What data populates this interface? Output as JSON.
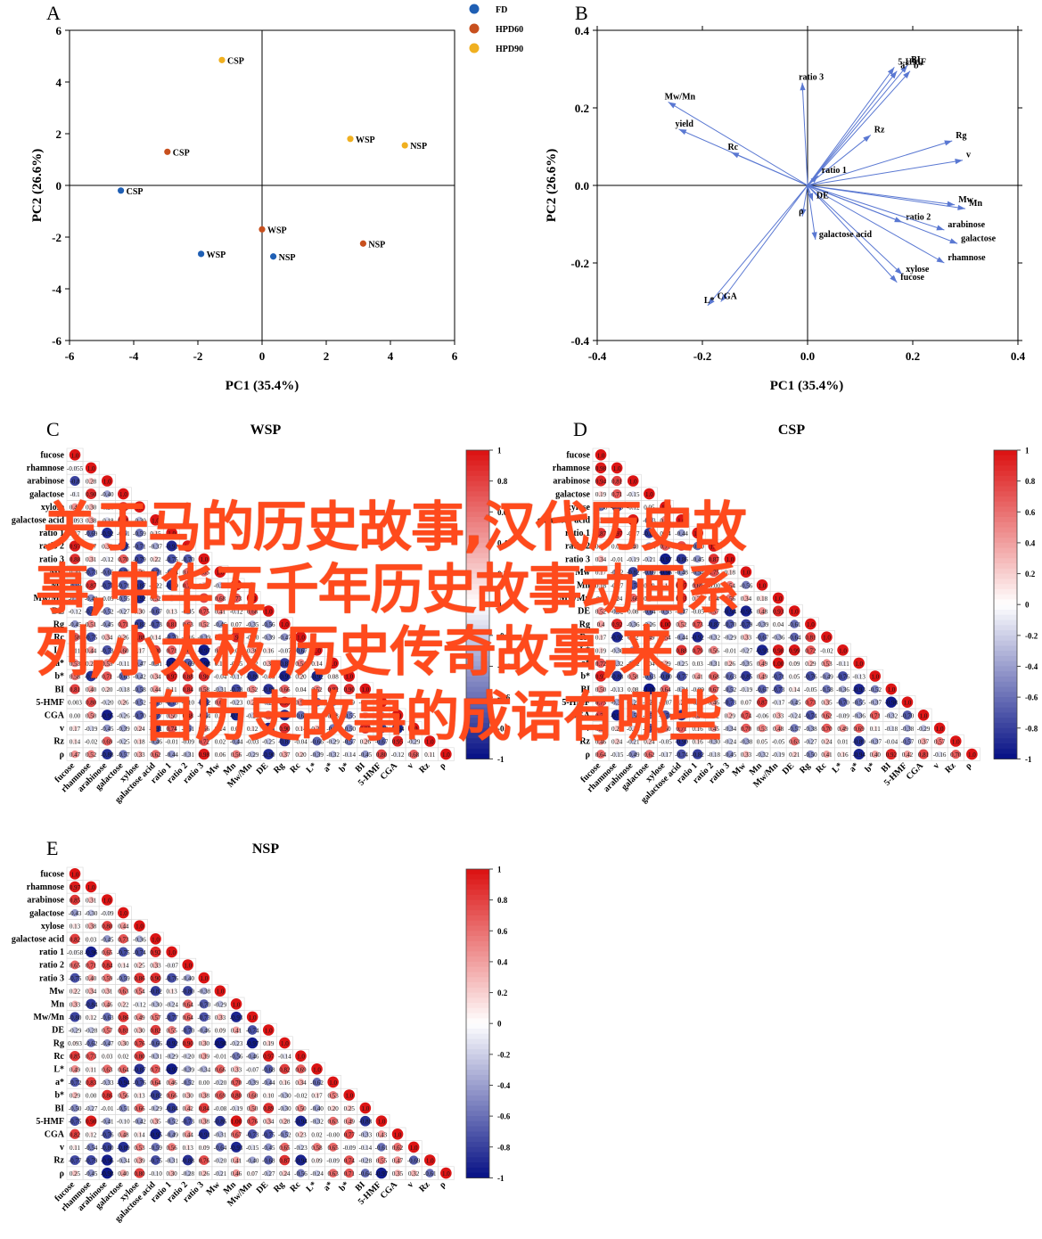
{
  "panels": {
    "A": {
      "letter": "A",
      "chart_data": {
        "type": "scatter",
        "xlabel": "PC1 (35.4%)",
        "ylabel": "PC2 (26.6%)",
        "xlim": [
          -6,
          6
        ],
        "ylim": [
          -6,
          6
        ],
        "xticks": [
          -6,
          -4,
          -2,
          0,
          2,
          4,
          6
        ],
        "yticks": [
          -6,
          -4,
          -2,
          0,
          2,
          4,
          6
        ],
        "legend_position": "top-right",
        "series": [
          {
            "name": "FD",
            "color": "#1f5fb4",
            "points": [
              {
                "x": -4.4,
                "y": -0.2,
                "label": "CSP"
              },
              {
                "x": -1.9,
                "y": -2.65,
                "label": "WSP"
              },
              {
                "x": 0.35,
                "y": -2.75,
                "label": "NSP"
              }
            ]
          },
          {
            "name": "HPD60",
            "color": "#c8501e",
            "points": [
              {
                "x": -2.95,
                "y": 1.3,
                "label": "CSP"
              },
              {
                "x": 0.0,
                "y": -1.7,
                "label": "WSP"
              },
              {
                "x": 3.15,
                "y": -2.25,
                "label": "NSP"
              }
            ]
          },
          {
            "name": "HPD90",
            "color": "#f0b020",
            "points": [
              {
                "x": -1.25,
                "y": 4.85,
                "label": "CSP"
              },
              {
                "x": 2.75,
                "y": 1.8,
                "label": "WSP"
              },
              {
                "x": 4.45,
                "y": 1.55,
                "label": "NSP"
              }
            ]
          }
        ]
      }
    },
    "B": {
      "letter": "B",
      "chart_data": {
        "type": "biplot",
        "xlabel": "PC1 (35.4%)",
        "ylabel": "PC2 (26.6%)",
        "xlim": [
          -0.4,
          0.4
        ],
        "ylim": [
          -0.4,
          0.4
        ],
        "xticks": [
          "-0.4",
          "-0.2",
          "0.0",
          "0.2",
          "0.4"
        ],
        "yticks": [
          "-0.4",
          "-0.2",
          "0.0",
          "0.2",
          "0.4"
        ],
        "arrow_color": "#5a78d2",
        "arrows": [
          {
            "label": "ratio 3",
            "x": -0.01,
            "y": 0.265
          },
          {
            "label": "5-HMF",
            "x": 0.165,
            "y": 0.305
          },
          {
            "label": "BI",
            "x": 0.19,
            "y": 0.31
          },
          {
            "label": "a*",
            "x": 0.17,
            "y": 0.295
          },
          {
            "label": "b*",
            "x": 0.195,
            "y": 0.295
          },
          {
            "label": "Mw/Mn",
            "x": -0.265,
            "y": 0.215
          },
          {
            "label": "yield",
            "x": -0.245,
            "y": 0.145
          },
          {
            "label": "Rc",
            "x": -0.145,
            "y": 0.085
          },
          {
            "label": "Rz",
            "x": 0.12,
            "y": 0.13
          },
          {
            "label": "Rg",
            "x": 0.275,
            "y": 0.115
          },
          {
            "label": "v",
            "x": 0.295,
            "y": 0.065
          },
          {
            "label": "ratio 1",
            "x": 0.02,
            "y": 0.025
          },
          {
            "label": "Mw",
            "x": 0.28,
            "y": -0.05
          },
          {
            "label": "Mn",
            "x": 0.3,
            "y": -0.06
          },
          {
            "label": "ratio 2",
            "x": 0.18,
            "y": -0.095
          },
          {
            "label": "arabinose",
            "x": 0.26,
            "y": -0.115
          },
          {
            "label": "galactose",
            "x": 0.285,
            "y": -0.15
          },
          {
            "label": "rhamnose",
            "x": 0.26,
            "y": -0.2
          },
          {
            "label": "xylose",
            "x": 0.18,
            "y": -0.23
          },
          {
            "label": "fucose",
            "x": 0.17,
            "y": -0.25
          },
          {
            "label": "DE",
            "x": 0.01,
            "y": -0.04
          },
          {
            "label": "ρ",
            "x": -0.01,
            "y": -0.08
          },
          {
            "label": "galactose acid",
            "x": 0.015,
            "y": -0.14
          },
          {
            "label": "L*",
            "x": -0.19,
            "y": -0.31
          },
          {
            "label": "CGA",
            "x": -0.165,
            "y": -0.3
          }
        ]
      }
    },
    "C": {
      "letter": "C",
      "title": "WSP",
      "chart_data": {
        "type": "heatmap",
        "variables": [
          "fucose",
          "rhamnose",
          "arabinose",
          "galactose",
          "xylose",
          "galactose acid",
          "ratio 1",
          "ratio 2",
          "ratio 3",
          "Mw",
          "Mn",
          "Mw/Mn",
          "DE",
          "Rg",
          "Rc",
          "L*",
          "a*",
          "b*",
          "BI",
          "5-HMF",
          "CGA",
          "v",
          "Rz",
          "ρ"
        ],
        "colorbar_ticks": [
          "1",
          "0.8",
          "0.6",
          "0.4",
          "0.2",
          "0",
          "-0.2",
          "-0.4",
          "-0.6",
          "-0.8",
          "-1"
        ],
        "first_column_values": [
          "1.0",
          "-0.055",
          "-0.8",
          "-0.1",
          "0.46",
          "-0.093",
          "0.17",
          "0.97",
          "0.88",
          "0.20",
          "-0.58",
          "-0.31",
          "-0.12",
          "-0.45",
          "0.68",
          "0.11",
          "0.53",
          "0.58",
          "0.81",
          "0.003",
          "0.00",
          "0.17",
          "0.14",
          "0.47"
        ]
      }
    },
    "D": {
      "letter": "D",
      "title": "CSP",
      "chart_data": {
        "type": "heatmap",
        "variables": [
          "fucose",
          "rhamnose",
          "arabinose",
          "galactose",
          "xylose",
          "galactose acid",
          "ratio 1",
          "ratio 2",
          "ratio 3",
          "Mw",
          "Mn",
          "Mw/Mn",
          "DE",
          "Rg",
          "Rc",
          "L*",
          "a*",
          "b*",
          "BI",
          "5-HMF",
          "CGA",
          "v",
          "Rz",
          "ρ"
        ],
        "colorbar_ticks": [
          "1",
          "0.8",
          "0.6",
          "0.4",
          "0.2",
          "0",
          "-0.2",
          "-0.4",
          "-0.6",
          "-0.8",
          "-1"
        ],
        "first_column_values": [
          "1.0",
          "0.98",
          "0.94",
          "0.19",
          "-0.58",
          "0.25",
          "0.87",
          "0.18",
          "0.34",
          "0.17",
          "0.18",
          "-0.08",
          "0.52",
          "0.4",
          "0.17",
          "0.19",
          "0.72",
          "0.97",
          "0.50",
          "0.75",
          "0.79",
          "0.57",
          "0.46",
          "0.64"
        ]
      }
    },
    "E": {
      "letter": "E",
      "title": "NSP",
      "chart_data": {
        "type": "heatmap",
        "variables": [
          "fucose",
          "rhamnose",
          "arabinose",
          "galactose",
          "xylose",
          "galactose acid",
          "ratio 1",
          "ratio 2",
          "ratio 3",
          "Mw",
          "Mn",
          "Mw/Mn",
          "DE",
          "Rg",
          "Rc",
          "L*",
          "a*",
          "b*",
          "BI",
          "5-HMF",
          "CGA",
          "v",
          "Rz",
          "ρ"
        ],
        "colorbar_ticks": [
          "1",
          "0.8",
          "0.6",
          "0.4",
          "0.2",
          "0",
          "-0.2",
          "-0.4",
          "-0.6",
          "-0.8",
          "-1"
        ],
        "first_column_values": [
          "1.0",
          "0.97",
          "0.85",
          "-0.43",
          "0.13",
          "0.82",
          "-0.058",
          "0.65",
          "-0.75",
          "0.22",
          "0.33",
          "-0.80",
          "",
          "0.093",
          "0.85",
          "0.49",
          "-0.72",
          "0.29",
          "-0.50",
          "-0.75",
          "0.82",
          "0.11",
          "-0.77",
          "0.25"
        ]
      }
    }
  },
  "overlay": {
    "color": "#ff4a1c",
    "lines": [
      "关于马的历史故事,汉代历史故",
      "事,中华五千年历史故事动画系",
      "列,小太极,历史传奇故事,来",
      "自历史故事的成语有哪些"
    ]
  }
}
